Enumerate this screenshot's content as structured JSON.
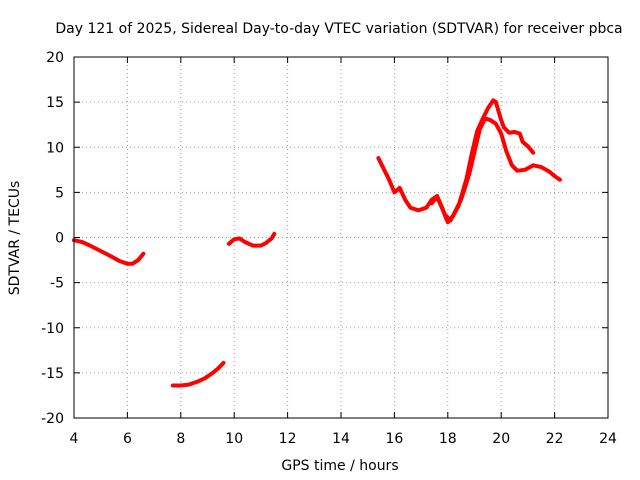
{
  "chart_data": {
    "type": "line",
    "title": "Day 121 of 2025, Sidereal Day-to-day VTEC variation (SDTVAR) for receiver pbca",
    "xlabel": "GPS time / hours",
    "ylabel": "SDTVAR / TECUs",
    "xlim": [
      4,
      24
    ],
    "ylim": [
      -20,
      20
    ],
    "x_ticks": [
      4,
      6,
      8,
      10,
      12,
      14,
      16,
      18,
      20,
      22,
      24
    ],
    "y_ticks": [
      -20,
      -15,
      -10,
      -5,
      0,
      5,
      10,
      15,
      20
    ],
    "x_tick_labels": [
      "4",
      "6",
      "8",
      "10",
      "12",
      "14",
      "16",
      "18",
      "20",
      "22",
      "24"
    ],
    "y_tick_labels": [
      "-20",
      "-15",
      "-10",
      "-5",
      "0",
      "5",
      "10",
      "15",
      "20"
    ],
    "grid": true,
    "color": "#ff0000",
    "series": [
      {
        "name": "segment-1",
        "points": [
          [
            4.0,
            -0.3
          ],
          [
            4.3,
            -0.5
          ],
          [
            4.6,
            -0.9
          ],
          [
            5.0,
            -1.5
          ],
          [
            5.4,
            -2.1
          ],
          [
            5.7,
            -2.6
          ],
          [
            6.0,
            -2.9
          ],
          [
            6.2,
            -2.9
          ],
          [
            6.4,
            -2.5
          ],
          [
            6.6,
            -1.8
          ]
        ]
      },
      {
        "name": "segment-2",
        "points": [
          [
            7.7,
            -16.4
          ],
          [
            8.0,
            -16.4
          ],
          [
            8.3,
            -16.3
          ],
          [
            8.6,
            -16.0
          ],
          [
            8.9,
            -15.6
          ],
          [
            9.2,
            -15.0
          ],
          [
            9.4,
            -14.5
          ],
          [
            9.6,
            -13.9
          ]
        ]
      },
      {
        "name": "segment-3",
        "points": [
          [
            9.8,
            -0.7
          ],
          [
            10.0,
            -0.2
          ],
          [
            10.2,
            -0.1
          ],
          [
            10.4,
            -0.5
          ],
          [
            10.7,
            -0.9
          ],
          [
            11.0,
            -0.9
          ],
          [
            11.2,
            -0.6
          ],
          [
            11.4,
            -0.1
          ],
          [
            11.5,
            0.4
          ]
        ]
      },
      {
        "name": "segment-4",
        "points": [
          [
            15.4,
            8.8
          ],
          [
            15.6,
            7.6
          ],
          [
            15.8,
            6.4
          ],
          [
            16.0,
            5.0
          ],
          [
            16.2,
            5.5
          ],
          [
            16.4,
            4.2
          ],
          [
            16.6,
            3.3
          ],
          [
            16.9,
            3.0
          ],
          [
            17.2,
            3.3
          ],
          [
            17.4,
            4.2
          ],
          [
            17.6,
            4.6
          ],
          [
            17.8,
            3.2
          ],
          [
            17.9,
            2.4
          ],
          [
            18.0,
            1.7
          ],
          [
            18.2,
            2.4
          ],
          [
            18.5,
            4.2
          ],
          [
            18.8,
            7.0
          ],
          [
            19.0,
            9.5
          ],
          [
            19.2,
            12.0
          ],
          [
            19.4,
            13.2
          ],
          [
            19.6,
            13.0
          ],
          [
            19.8,
            12.6
          ],
          [
            20.0,
            11.5
          ],
          [
            20.2,
            9.5
          ],
          [
            20.4,
            8.0
          ],
          [
            20.6,
            7.4
          ],
          [
            20.9,
            7.5
          ],
          [
            21.2,
            8.0
          ],
          [
            21.5,
            7.8
          ],
          [
            21.8,
            7.3
          ],
          [
            22.0,
            6.8
          ],
          [
            22.2,
            6.4
          ]
        ]
      },
      {
        "name": "segment-5",
        "points": [
          [
            17.4,
            3.8
          ],
          [
            17.6,
            4.5
          ],
          [
            17.7,
            3.8
          ],
          [
            17.9,
            2.5
          ],
          [
            18.1,
            1.9
          ],
          [
            18.4,
            3.5
          ],
          [
            18.7,
            6.5
          ],
          [
            18.9,
            9.3
          ],
          [
            19.1,
            11.8
          ],
          [
            19.3,
            13.1
          ],
          [
            19.5,
            14.3
          ],
          [
            19.7,
            15.2
          ],
          [
            19.8,
            15.0
          ],
          [
            19.9,
            14.0
          ],
          [
            20.0,
            13.0
          ],
          [
            20.1,
            12.2
          ],
          [
            20.3,
            11.6
          ],
          [
            20.5,
            11.7
          ],
          [
            20.7,
            11.5
          ],
          [
            20.8,
            10.6
          ],
          [
            21.0,
            10.1
          ],
          [
            21.2,
            9.4
          ]
        ]
      }
    ]
  }
}
